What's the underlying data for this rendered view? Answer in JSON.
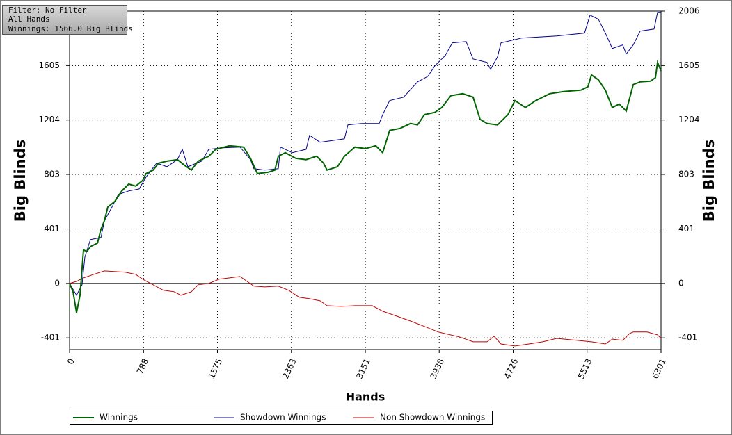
{
  "chart_data": {
    "type": "line",
    "annotations": [
      "Filter: No Filter",
      "All Hands",
      "Winnings: 1566.0 Big Blinds"
    ],
    "xlabel": "Hands",
    "ylabel": "Big Blinds",
    "xlim": [
      0,
      6301
    ],
    "xticks": [
      0,
      788,
      1575,
      2363,
      3151,
      3938,
      4726,
      5513,
      6301
    ],
    "ylim": [
      -487,
      2006
    ],
    "yticks": [
      -401,
      0,
      401,
      803,
      1204,
      1605,
      2006
    ],
    "grid": true,
    "series": [
      {
        "name": "Winnings",
        "color": "#006400",
        "x": [
          0,
          37,
          74,
          111,
          148,
          185,
          222,
          297,
          334,
          371,
          408,
          482,
          556,
          630,
          704,
          778,
          815,
          890,
          949,
          1038,
          1149,
          1223,
          1297,
          1371,
          1483,
          1557,
          1705,
          1853,
          1927,
          2001,
          2113,
          2187,
          2224,
          2298,
          2409,
          2520,
          2632,
          2706,
          2743,
          2854,
          2928,
          3039,
          3151,
          3262,
          3336,
          3410,
          3521,
          3632,
          3707,
          3781,
          3892,
          3966,
          4062,
          4188,
          4299,
          4373,
          4448,
          4559,
          4670,
          4744,
          4856,
          4967,
          5115,
          5263,
          5449,
          5523,
          5560,
          5634,
          5708,
          5782,
          5856,
          5930,
          6005,
          6079,
          6190,
          6242,
          6264,
          6301
        ],
        "values": [
          0,
          -61,
          -215,
          -87,
          246,
          236,
          271,
          297,
          399,
          461,
          563,
          604,
          681,
          732,
          717,
          758,
          809,
          835,
          886,
          901,
          912,
          871,
          835,
          901,
          937,
          988,
          1014,
          1004,
          922,
          809,
          819,
          835,
          937,
          963,
          922,
          912,
          937,
          886,
          835,
          860,
          937,
          1004,
          993,
          1014,
          963,
          1127,
          1142,
          1178,
          1168,
          1244,
          1260,
          1296,
          1383,
          1398,
          1372,
          1209,
          1178,
          1168,
          1244,
          1347,
          1296,
          1347,
          1398,
          1413,
          1424,
          1449,
          1536,
          1500,
          1424,
          1296,
          1321,
          1270,
          1465,
          1485,
          1490,
          1516,
          1628,
          1566
        ]
      },
      {
        "name": "Showdown Winnings",
        "color": "#00008b",
        "x": [
          0,
          74,
          133,
          163,
          222,
          334,
          371,
          445,
          519,
          630,
          741,
          815,
          927,
          1038,
          1149,
          1201,
          1260,
          1408,
          1483,
          1631,
          1816,
          1927,
          1964,
          2076,
          2224,
          2246,
          2372,
          2520,
          2557,
          2669,
          2928,
          2965,
          3113,
          3298,
          3336,
          3410,
          3558,
          3707,
          3818,
          3892,
          4003,
          4077,
          4225,
          4299,
          4448,
          4485,
          4559,
          4596,
          4818,
          5189,
          5486,
          5545,
          5634,
          5708,
          5782,
          5893,
          5930,
          6005,
          6079,
          6227,
          6264,
          6301
        ],
        "values": [
          0,
          -87,
          -10,
          195,
          323,
          338,
          461,
          553,
          655,
          681,
          696,
          783,
          886,
          860,
          912,
          988,
          860,
          901,
          988,
          999,
          1004,
          912,
          845,
          835,
          845,
          1004,
          963,
          988,
          1091,
          1040,
          1065,
          1168,
          1178,
          1178,
          1244,
          1347,
          1372,
          1485,
          1526,
          1603,
          1680,
          1772,
          1782,
          1654,
          1628,
          1577,
          1669,
          1772,
          1808,
          1823,
          1844,
          1977,
          1946,
          1844,
          1731,
          1757,
          1690,
          1757,
          1859,
          1874,
          1997,
          1997
        ]
      },
      {
        "name": "Non Showdown Winnings",
        "color": "#c00000",
        "x": [
          0,
          74,
          148,
          259,
          371,
          593,
          704,
          778,
          890,
          1001,
          1112,
          1186,
          1297,
          1371,
          1483,
          1594,
          1705,
          1816,
          1890,
          1964,
          2076,
          2224,
          2335,
          2446,
          2557,
          2669,
          2743,
          2891,
          3039,
          3225,
          3336,
          3484,
          3632,
          3781,
          3929,
          4151,
          4299,
          4448,
          4522,
          4596,
          4744,
          4893,
          5041,
          5189,
          5411,
          5560,
          5708,
          5782,
          5893,
          5967,
          6005,
          6153,
          6264,
          6301
        ],
        "values": [
          0,
          15,
          41,
          67,
          92,
          82,
          67,
          31,
          -10,
          -51,
          -61,
          -87,
          -61,
          -10,
          0,
          31,
          41,
          51,
          15,
          -20,
          -26,
          -20,
          -51,
          -102,
          -113,
          -128,
          -164,
          -169,
          -164,
          -164,
          -205,
          -241,
          -277,
          -317,
          -358,
          -394,
          -430,
          -430,
          -389,
          -446,
          -461,
          -446,
          -430,
          -405,
          -420,
          -430,
          -446,
          -410,
          -420,
          -369,
          -358,
          -358,
          -379,
          -405
        ]
      }
    ]
  }
}
